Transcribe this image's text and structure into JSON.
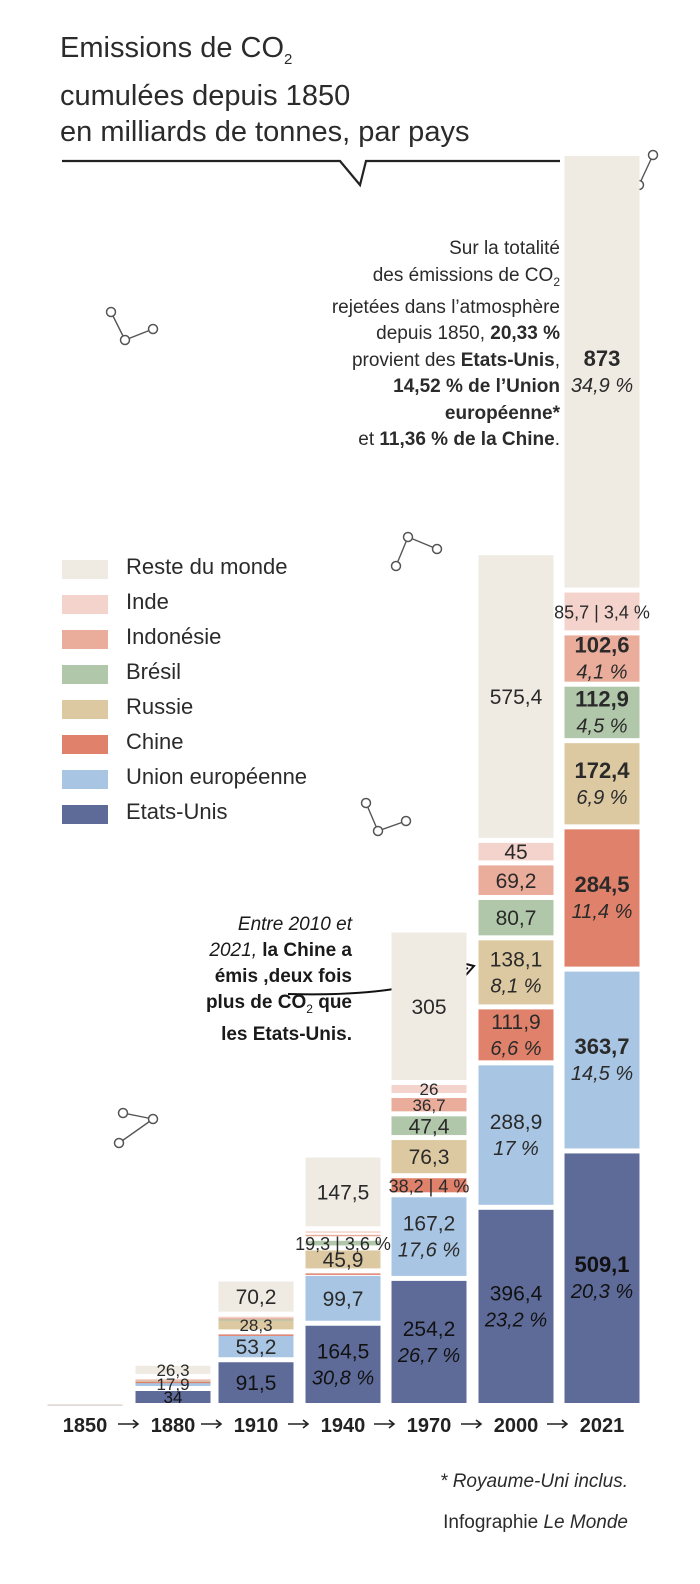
{
  "title": {
    "line1_pre": "Emissions de CO",
    "line1_sub": "2",
    "line2": "cumulées depuis 1850",
    "line3": "en milliards de tonnes, par pays"
  },
  "intro": {
    "l1": "Sur la totalité",
    "l2_pre": "des émissions de CO",
    "l2_sub": "2",
    "l3": "rejetées dans l’atmosphère",
    "l4_pre": "depuis 1850, ",
    "l4_bold": "20,33 %",
    "l5_pre": "provient des ",
    "l5_bold": "Etats-Unis",
    "l5_post": ",",
    "l6_bold": "14,52 % de l’Union",
    "l7_bold": "européenne*",
    "l8_pre": "et ",
    "l8_bold": "11,36 % de la Chine",
    "l8_post": "."
  },
  "note": {
    "l1_italic": "Entre 2010 et",
    "l2_italic": "2021, ",
    "l2_bold": "la Chine a",
    "l3_bold": "émis ,deux fois",
    "l4_bold_pre": "plus de CO",
    "l4_sub": "2",
    "l4_bold_post": " que",
    "l5_bold": "les Etats-Unis."
  },
  "footer": {
    "footnote": "* Royaume-Uni inclus.",
    "credit_pre": "Infographie ",
    "credit_italic": "Le Monde"
  },
  "colors": {
    "rest": "#efebe3",
    "india": "#f3d3cb",
    "indonesia": "#eaad9c",
    "brazil": "#b1c7aa",
    "russia": "#dcc9a2",
    "china": "#e0826b",
    "eu": "#a8c5e3",
    "usa": "#5e6b99"
  },
  "chart_data": {
    "type": "bar",
    "stacked": true,
    "categories": [
      "1850",
      "1880",
      "1910",
      "1940",
      "1970",
      "2000",
      "2021"
    ],
    "legend_placement": "left",
    "series": [
      {
        "key": "usa",
        "name": "Etats-Unis",
        "color": "#5e6b99",
        "values": [
          0.1,
          34,
          91.5,
          164.5,
          254.2,
          396.4,
          509.1
        ],
        "labels": [
          "",
          "34",
          "91,5",
          "164,5",
          "254,2",
          "396,4",
          "509,1"
        ],
        "percents": [
          "",
          "",
          "",
          "30,8 %",
          "26,7 %",
          "23,2 %",
          "20,3 %"
        ]
      },
      {
        "key": "eu",
        "name": "Union européenne",
        "color": "#a8c5e3",
        "values": [
          0.3,
          17.9,
          53.2,
          99.7,
          167.2,
          288.9,
          363.7
        ],
        "labels": [
          "",
          "17,9",
          "53,2",
          "99,7",
          "167,2",
          "288,9",
          "363,7"
        ],
        "percents": [
          "",
          "",
          "",
          "",
          "17,6 %",
          "17 %",
          "14,5 %"
        ]
      },
      {
        "key": "china",
        "name": "Chine",
        "color": "#e0826b",
        "values": [
          0.05,
          0.8,
          2.5,
          5,
          38.2,
          111.9,
          284.5
        ],
        "labels": [
          "",
          "",
          "",
          "",
          "38,2",
          "111,9",
          "284,5"
        ],
        "percents": [
          "",
          "",
          "",
          "",
          "4 %",
          "6,6 %",
          "11,4 %"
        ]
      },
      {
        "key": "russia",
        "name": "Russie",
        "color": "#dcc9a2",
        "values": [
          0.05,
          3,
          28.3,
          45.9,
          76.3,
          138.1,
          172.4
        ],
        "labels": [
          "",
          "",
          "28,3",
          "45,9",
          "76,3",
          "138,1",
          "172,4"
        ],
        "percents": [
          "",
          "",
          "",
          "",
          "",
          "8,1 %",
          "6,9 %"
        ]
      },
      {
        "key": "brazil",
        "name": "Brésil",
        "color": "#b1c7aa",
        "values": [
          0.05,
          0.8,
          2.2,
          19.3,
          47.4,
          80.7,
          112.9
        ],
        "labels": [
          "",
          "",
          "",
          "19,3",
          "47,4",
          "80,7",
          "112,9"
        ],
        "percents": [
          "",
          "",
          "",
          "3,6 %",
          "",
          "",
          "4,5 %"
        ]
      },
      {
        "key": "indonesia",
        "name": "Indonésie",
        "color": "#eaad9c",
        "values": [
          0.05,
          0.8,
          2.5,
          12,
          36.7,
          69.2,
          102.6
        ],
        "labels": [
          "",
          "",
          "",
          "",
          "36,7",
          "69,2",
          "102,6"
        ],
        "percents": [
          "",
          "",
          "",
          "",
          "",
          "",
          "4,1 %"
        ]
      },
      {
        "key": "india",
        "name": "Inde",
        "color": "#f3d3cb",
        "values": [
          0.05,
          0.8,
          2.5,
          7,
          26,
          45,
          85.7
        ],
        "labels": [
          "",
          "",
          "",
          "",
          "26",
          "45",
          "85,7"
        ],
        "percents": [
          "",
          "",
          "",
          "",
          "",
          "",
          "3,4 %"
        ]
      },
      {
        "key": "rest",
        "name": "Reste du monde",
        "color": "#efebe3",
        "values": [
          0.1,
          26.3,
          70.2,
          147.5,
          305,
          575.4,
          873
        ],
        "labels": [
          "",
          "26,3",
          "70,2",
          "147,5",
          "305",
          "575,4",
          "873"
        ],
        "percents": [
          "",
          "",
          "",
          "",
          "",
          "",
          "34,9 %"
        ]
      }
    ]
  }
}
